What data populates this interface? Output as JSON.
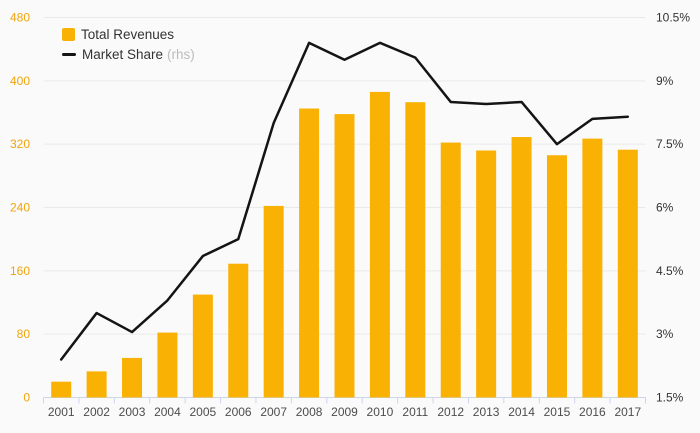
{
  "colors": {
    "background": "#fafafa",
    "bar": "#F9B104",
    "line": "#141414",
    "grid": "#e9e9e9",
    "axis_line": "#ccd6eb",
    "left_labels": "#F0A50A",
    "right_labels": "#333333",
    "x_labels": "#4d4d4d",
    "legend_text": "#333333",
    "legend_muted": "#bcbcbc"
  },
  "legend": {
    "total_revenues": "Total Revenues",
    "market_share": "Market Share",
    "rhs": "(rhs)"
  },
  "chart_data": {
    "type": "bar",
    "subtype": "bar+line combo, dual axis",
    "title": "",
    "xlabel": "",
    "ylabel_left": "",
    "ylabel_right": "",
    "grid": true,
    "legend_position": "top-left",
    "categories": [
      "2001",
      "2002",
      "2003",
      "2004",
      "2005",
      "2006",
      "2007",
      "2008",
      "2009",
      "2010",
      "2011",
      "2012",
      "2013",
      "2014",
      "2015",
      "2016",
      "2017"
    ],
    "series": [
      {
        "name": "Total Revenues",
        "type": "bar",
        "axis": "left",
        "values": [
          20,
          33,
          50,
          82,
          130,
          169,
          242,
          365,
          358,
          386,
          373,
          322,
          312,
          329,
          306,
          327,
          313
        ]
      },
      {
        "name": "Market Share (rhs)",
        "type": "line",
        "axis": "right",
        "values": [
          2.4,
          3.5,
          3.05,
          3.8,
          4.85,
          5.25,
          8.0,
          9.9,
          9.5,
          9.9,
          9.55,
          8.5,
          8.45,
          8.5,
          7.5,
          8.1,
          8.15
        ]
      }
    ],
    "left_axis": {
      "min": 0,
      "max": 480,
      "step": 80,
      "tick_labels": [
        "0",
        "80",
        "160",
        "240",
        "320",
        "400",
        "480"
      ]
    },
    "right_axis": {
      "min": 1.5,
      "max": 10.5,
      "step": 1.5,
      "tick_labels": [
        "1.5%",
        "3%",
        "4.5%",
        "6%",
        "7.5%",
        "9%",
        "10.5%"
      ]
    }
  }
}
